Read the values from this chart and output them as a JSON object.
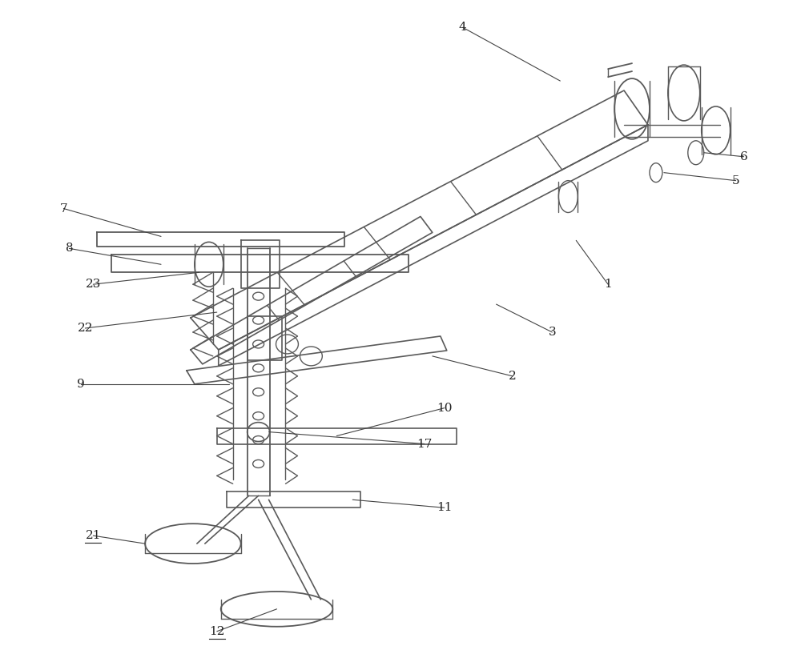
{
  "background_color": "#ffffff",
  "line_color": "#5a5a5a",
  "line_width": 1.0,
  "fig_width": 10.0,
  "fig_height": 8.27,
  "dpi": 100
}
